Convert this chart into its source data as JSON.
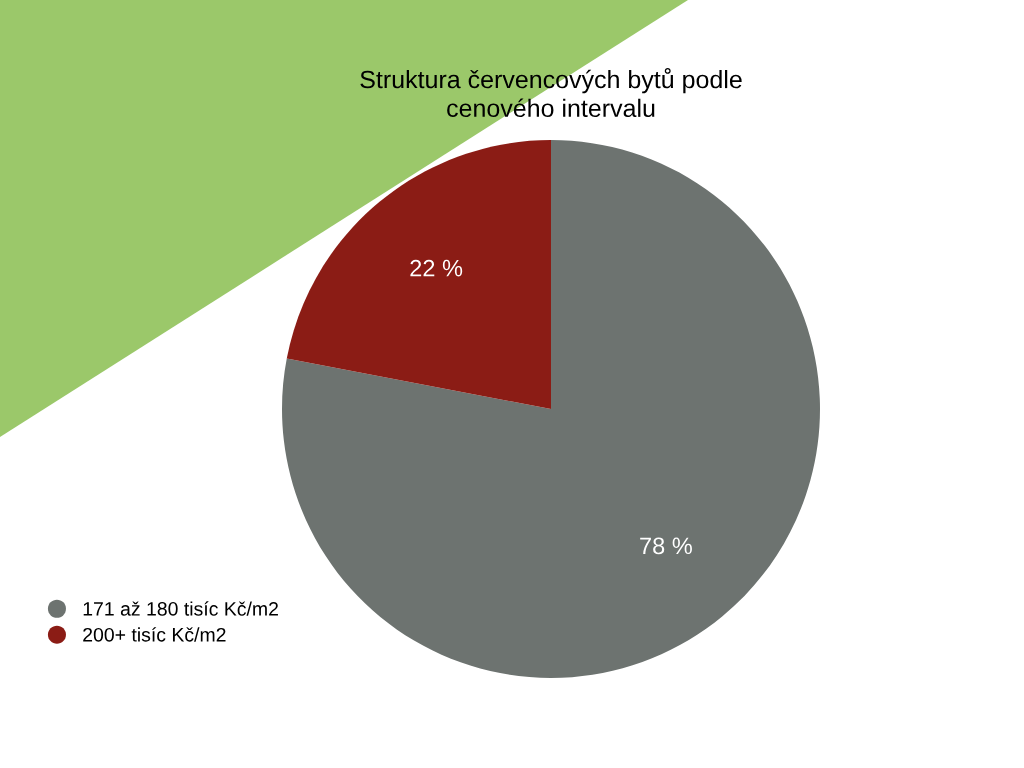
{
  "chart_data": {
    "type": "pie",
    "title": "Struktura červencových bytů podle\ncenového intervalu",
    "categories": [
      "171 až 180 tisíc Kč/m2",
      "200+ tisíc Kč/m2"
    ],
    "values": [
      78,
      22
    ],
    "colors": [
      "#6d7370",
      "#8b1c15"
    ],
    "value_labels": [
      "78 %",
      "22 %"
    ],
    "legend": "bottom left"
  }
}
